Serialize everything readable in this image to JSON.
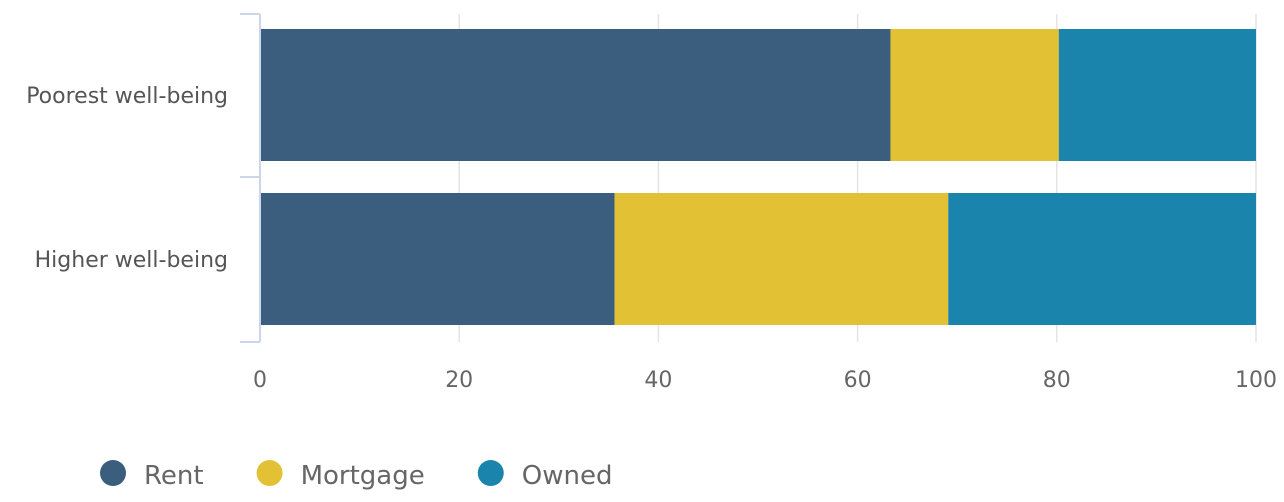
{
  "chart_data": {
    "type": "bar",
    "orientation": "horizontal",
    "stacked": true,
    "categories": [
      "Poorest well-being",
      "Higher well-being"
    ],
    "series": [
      {
        "name": "Rent",
        "color": "#3b5e7f",
        "values": [
          63.3,
          35.6
        ]
      },
      {
        "name": "Mortgage",
        "color": "#e3c134",
        "values": [
          16.9,
          33.5
        ]
      },
      {
        "name": "Owned",
        "color": "#1b84ad",
        "values": [
          19.8,
          30.9
        ]
      }
    ],
    "xlim": [
      0,
      100
    ],
    "xticks": [
      0,
      20,
      40,
      60,
      80,
      100
    ],
    "title": "",
    "xlabel": "",
    "ylabel": "",
    "grid": "vertical",
    "legend_position": "bottom-left"
  }
}
